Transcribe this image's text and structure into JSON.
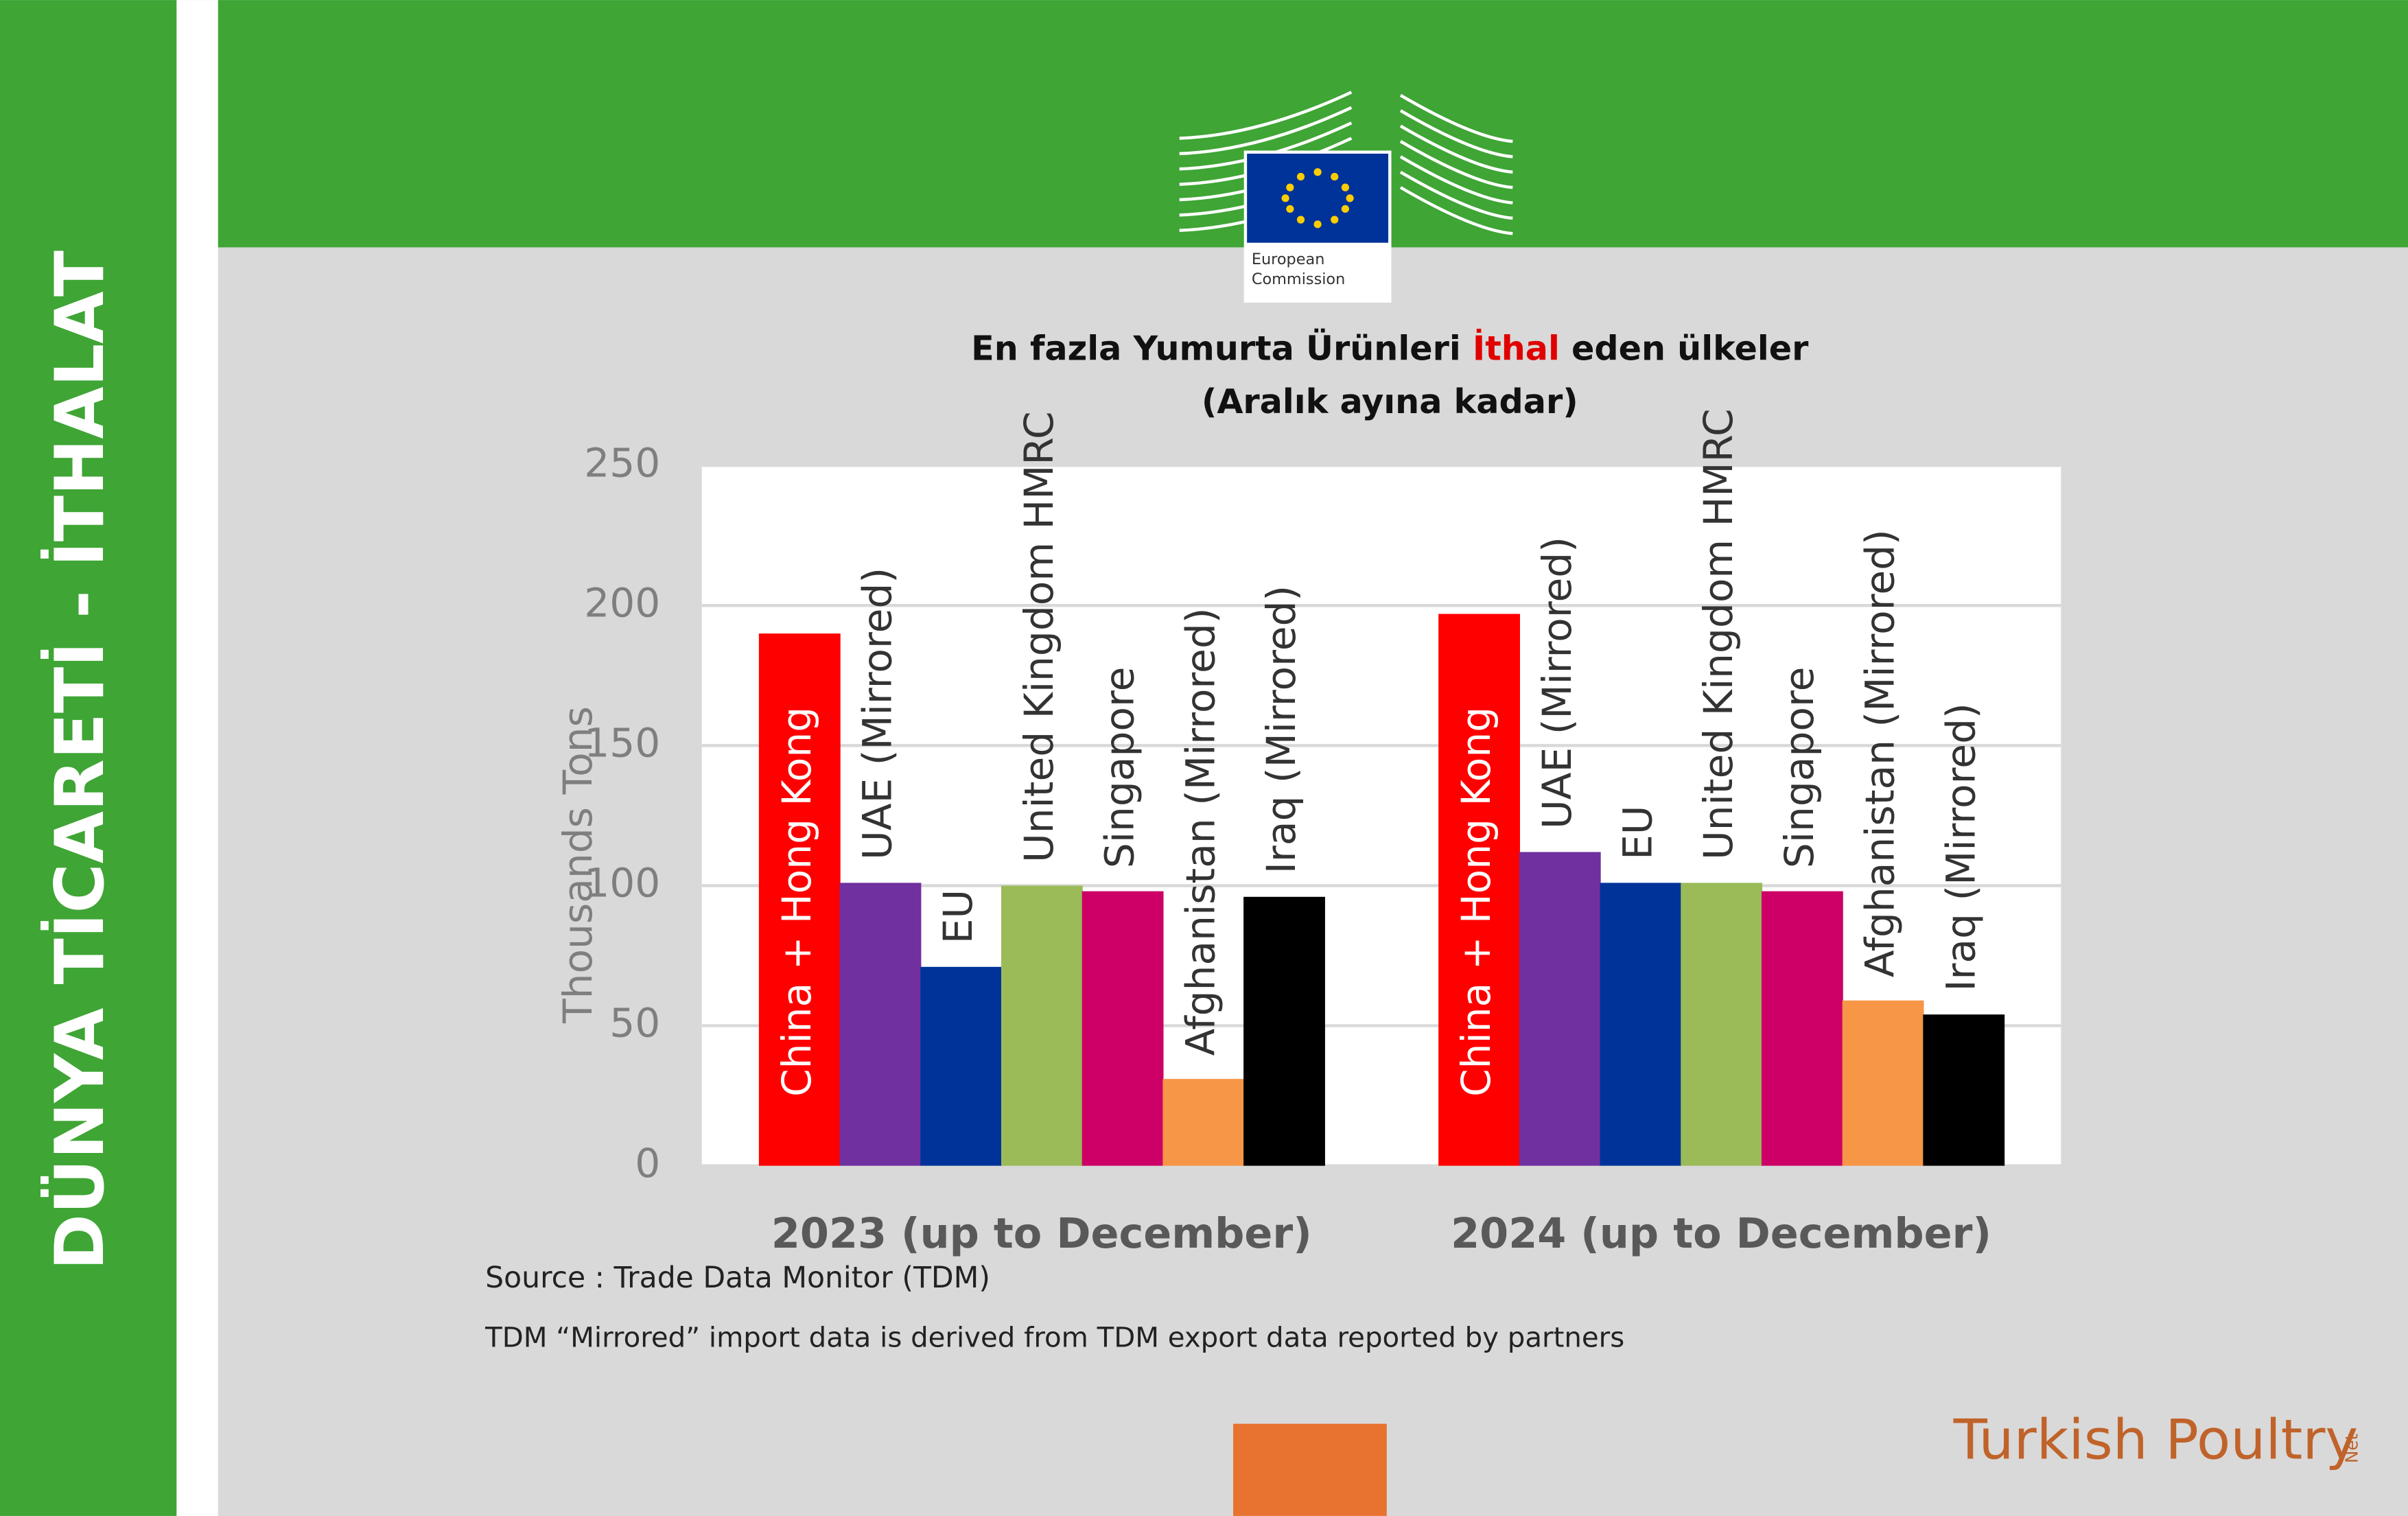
{
  "sidebar": "DÜNYA TİCARETİ - İTHALAT",
  "logo": {
    "line1": "European",
    "line2": "Commission"
  },
  "brand": {
    "name": "Turkish Poultry",
    "suffix": "Net"
  },
  "chart_data": {
    "type": "bar",
    "title": {
      "before": "En fazla Yumurta Ürünleri",
      "highlight": "İthal",
      "after": "eden ülkeler"
    },
    "subtitle": "(Aralık ayına kadar)",
    "y_label": "Thousands Tons",
    "categories": [
      "2023 (up to December)",
      "2024 (up to December)"
    ],
    "series": [
      {
        "name": "China + Hong Kong",
        "color": "#ff0000",
        "values": [
          190,
          197
        ]
      },
      {
        "name": "UAE (Mirrored)",
        "color": "#7030a0",
        "values": [
          101,
          112
        ]
      },
      {
        "name": "EU",
        "color": "#003399",
        "values": [
          71,
          101
        ]
      },
      {
        "name": "United Kingdom HMRC",
        "color": "#9bbb59",
        "values": [
          100,
          101
        ]
      },
      {
        "name": "Singapore",
        "color": "#cc0066",
        "values": [
          98,
          98
        ]
      },
      {
        "name": "Afghanistan (Mirrored)",
        "color": "#f79646",
        "values": [
          31,
          59
        ]
      },
      {
        "name": "Iraq (Mirrored)",
        "color": "#000000",
        "values": [
          96,
          54
        ]
      }
    ],
    "ylim": [
      0,
      250
    ],
    "yticks": [
      0,
      50,
      100,
      150,
      200,
      250
    ],
    "grid": true,
    "source": "Source : Trade Data Monitor (TDM)",
    "note": "TDM “Mirrored” import data is derived from TDM export data reported by partners"
  }
}
